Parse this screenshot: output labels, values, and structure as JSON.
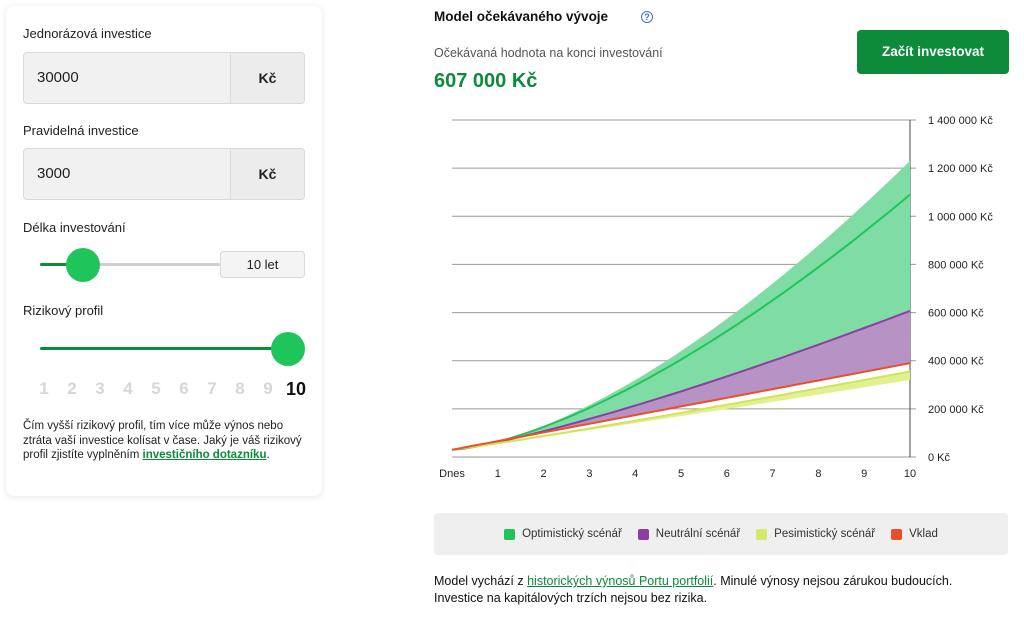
{
  "form": {
    "one_time_label": "Jednorázová investice",
    "one_time_value": "30000",
    "one_time_unit": "Kč",
    "regular_label": "Pravidelná investice",
    "regular_value": "3000",
    "regular_unit": "Kč",
    "length_label": "Délka investování",
    "length_value": "10 let",
    "length_fraction": 0.24,
    "risk_label": "Rizikový profil",
    "risk_levels": [
      "1",
      "2",
      "3",
      "4",
      "5",
      "6",
      "7",
      "8",
      "9",
      "10"
    ],
    "risk_selected": "10",
    "note_text": "Čím vyšší rizikový profil, tím více může výnos nebo ztráta vaší investice kolísat v čase. Jaký je váš rizikový profil zjistíte vyplněním ",
    "note_link": "investičního dotazníku",
    "note_end": "."
  },
  "header": {
    "title": "Model očekávaného vývoje",
    "help_icon": "?",
    "subtitle": "Očekávaná hodnota na konci investování",
    "expected_value": "607 000 Kč",
    "cta_label": "Začít investovat"
  },
  "chart_data": {
    "type": "area",
    "x": [
      "Dnes",
      "1",
      "2",
      "3",
      "4",
      "5",
      "6",
      "7",
      "8",
      "9",
      "10"
    ],
    "y_ticks": [
      "1 400 000 Kč",
      "1 200 000 Kč",
      "1 000 000 Kč",
      "800 000 Kč",
      "600 000 Kč",
      "400 000 Kč",
      "200 000 Kč",
      "0 Kč"
    ],
    "ylim": [
      0,
      1400000
    ],
    "series": [
      {
        "name": "Optimistický scénář",
        "color": "#1fc45a",
        "band_upper": 1230000,
        "line": 1090000
      },
      {
        "name": "Neutrální scénář",
        "color": "#8e3ea3",
        "line": 607000
      },
      {
        "name": "Pesimistický scénář",
        "color": "#d4ea6a",
        "line": 355000,
        "band_lower": 320000
      },
      {
        "name": "Vklad",
        "color": "#e8502a",
        "line": 390000
      }
    ],
    "start_value": 30000
  },
  "legend": {
    "optimistic": "Optimistický scénář",
    "neutral": "Neutrální scénář",
    "pessimistic": "Pesimistický scénář",
    "deposit": "Vklad"
  },
  "footer": {
    "text_start": "Model vychází z ",
    "link": "historických výnosů Portu portfolií",
    "text_end": ". Minulé výnosy nejsou zárukou budoucích. Investice na kapitálových trzích nejsou bez rizika."
  }
}
